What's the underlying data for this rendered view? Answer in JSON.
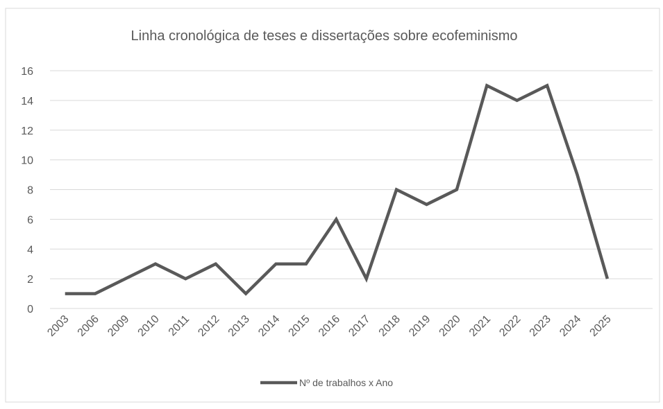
{
  "chart_data": {
    "type": "line",
    "title": "Linha cronológica de teses e dissertações sobre ecofeminismo",
    "categories": [
      "2003",
      "2006",
      "2009",
      "2010",
      "2011",
      "2012",
      "2013",
      "2014",
      "2015",
      "2016",
      "2017",
      "2018",
      "2019",
      "2020",
      "2021",
      "2022",
      "2023",
      "2024",
      "2025"
    ],
    "series": [
      {
        "name": "Nº de trabalhos x Ano",
        "color": "#595959",
        "values": [
          1,
          1,
          2,
          3,
          2,
          3,
          1,
          3,
          3,
          6,
          2,
          8,
          7,
          8,
          15,
          14,
          15,
          9,
          2
        ]
      }
    ],
    "ylim": [
      0,
      16
    ],
    "yticks": [
      0,
      2,
      4,
      6,
      8,
      10,
      12,
      14,
      16
    ],
    "grid": true,
    "legend": "bottom"
  }
}
